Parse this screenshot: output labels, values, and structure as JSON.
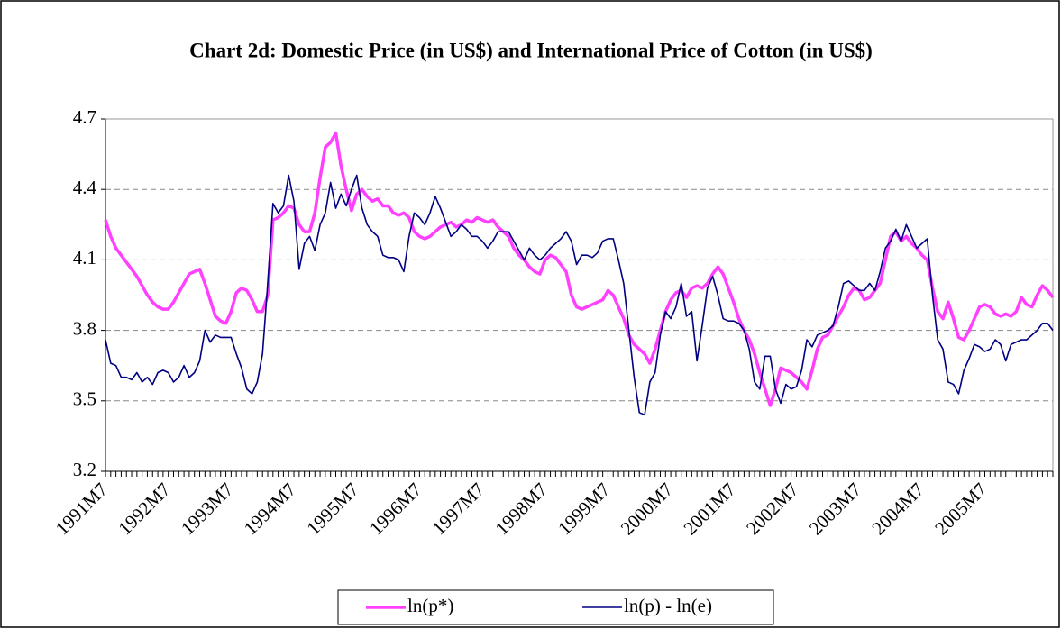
{
  "chart_data": {
    "type": "line",
    "title": "Chart 2d: Domestic Price (in US$) and International Price of Cotton (in US$)",
    "categories": [
      "1991M7",
      null,
      null,
      null,
      null,
      null,
      null,
      null,
      null,
      null,
      null,
      null,
      "1992M7",
      null,
      null,
      null,
      null,
      null,
      null,
      null,
      null,
      null,
      null,
      null,
      "1993M7",
      null,
      null,
      null,
      null,
      null,
      null,
      null,
      null,
      null,
      null,
      null,
      "1994M7",
      null,
      null,
      null,
      null,
      null,
      null,
      null,
      null,
      null,
      null,
      null,
      "1995M7",
      null,
      null,
      null,
      null,
      null,
      null,
      null,
      null,
      null,
      null,
      null,
      "1996M7",
      null,
      null,
      null,
      null,
      null,
      null,
      null,
      null,
      null,
      null,
      null,
      "1997M7",
      null,
      null,
      null,
      null,
      null,
      null,
      null,
      null,
      null,
      null,
      null,
      "1998M7",
      null,
      null,
      null,
      null,
      null,
      null,
      null,
      null,
      null,
      null,
      null,
      "1999M7",
      null,
      null,
      null,
      null,
      null,
      null,
      null,
      null,
      null,
      null,
      null,
      "2000M7",
      null,
      null,
      null,
      null,
      null,
      null,
      null,
      null,
      null,
      null,
      null,
      "2001M7",
      null,
      null,
      null,
      null,
      null,
      null,
      null,
      null,
      null,
      null,
      null,
      "2002M7",
      null,
      null,
      null,
      null,
      null,
      null,
      null,
      null,
      null,
      null,
      null,
      "2003M7",
      null,
      null,
      null,
      null,
      null,
      null,
      null,
      null,
      null,
      null,
      null,
      "2004M7",
      null,
      null,
      null,
      null,
      null,
      null,
      null,
      null,
      null,
      null,
      null,
      "2005M7",
      null,
      null,
      null,
      null,
      null,
      null,
      null,
      null,
      null,
      null,
      null,
      null,
      null
    ],
    "series": [
      {
        "name": "ln(p*)",
        "color": "#ff40ff",
        "values": [
          4.27,
          4.2,
          4.15,
          4.12,
          4.09,
          4.06,
          4.03,
          3.99,
          3.95,
          3.92,
          3.9,
          3.89,
          3.89,
          3.92,
          3.96,
          4.0,
          4.04,
          4.05,
          4.06,
          4.0,
          3.93,
          3.86,
          3.84,
          3.83,
          3.88,
          3.96,
          3.98,
          3.97,
          3.93,
          3.88,
          3.88,
          3.95,
          4.27,
          4.28,
          4.3,
          4.33,
          4.32,
          4.25,
          4.22,
          4.22,
          4.3,
          4.45,
          4.58,
          4.6,
          4.64,
          4.5,
          4.4,
          4.31,
          4.38,
          4.4,
          4.37,
          4.35,
          4.36,
          4.33,
          4.33,
          4.3,
          4.29,
          4.3,
          4.28,
          4.22,
          4.2,
          4.19,
          4.2,
          4.22,
          4.24,
          4.25,
          4.26,
          4.24,
          4.25,
          4.27,
          4.26,
          4.28,
          4.27,
          4.26,
          4.27,
          4.24,
          4.22,
          4.2,
          4.15,
          4.12,
          4.1,
          4.07,
          4.05,
          4.04,
          4.1,
          4.12,
          4.11,
          4.08,
          4.05,
          3.95,
          3.9,
          3.89,
          3.9,
          3.91,
          3.92,
          3.93,
          3.97,
          3.95,
          3.9,
          3.85,
          3.78,
          3.74,
          3.72,
          3.7,
          3.66,
          3.72,
          3.8,
          3.88,
          3.93,
          3.96,
          3.97,
          3.94,
          3.98,
          3.99,
          3.98,
          4.0,
          4.04,
          4.07,
          4.04,
          3.98,
          3.92,
          3.85,
          3.8,
          3.76,
          3.7,
          3.62,
          3.55,
          3.48,
          3.55,
          3.64,
          3.63,
          3.62,
          3.6,
          3.58,
          3.55,
          3.63,
          3.72,
          3.77,
          3.78,
          3.82,
          3.86,
          3.9,
          3.95,
          3.98,
          3.97,
          3.93,
          3.94,
          3.97,
          4.0,
          4.1,
          4.2,
          4.22,
          4.18,
          4.2,
          4.17,
          4.15,
          4.12,
          4.1,
          3.98,
          3.88,
          3.85,
          3.92,
          3.85,
          3.77,
          3.76,
          3.8,
          3.85,
          3.9,
          3.91,
          3.9,
          3.87,
          3.86,
          3.87,
          3.86,
          3.88,
          3.94,
          3.91,
          3.9,
          3.95,
          3.99,
          3.97,
          3.94
        ]
      },
      {
        "name": "ln(p) - ln(e)",
        "color": "#000080",
        "values": [
          3.76,
          3.66,
          3.65,
          3.6,
          3.6,
          3.59,
          3.62,
          3.58,
          3.6,
          3.57,
          3.62,
          3.63,
          3.62,
          3.58,
          3.6,
          3.65,
          3.6,
          3.62,
          3.67,
          3.8,
          3.75,
          3.78,
          3.77,
          3.77,
          3.77,
          3.7,
          3.64,
          3.55,
          3.53,
          3.58,
          3.7,
          4.0,
          4.34,
          4.3,
          4.33,
          4.46,
          4.35,
          4.06,
          4.17,
          4.2,
          4.14,
          4.25,
          4.3,
          4.43,
          4.32,
          4.38,
          4.33,
          4.4,
          4.46,
          4.32,
          4.25,
          4.22,
          4.2,
          4.12,
          4.11,
          4.11,
          4.1,
          4.05,
          4.2,
          4.3,
          4.28,
          4.25,
          4.3,
          4.37,
          4.32,
          4.26,
          4.2,
          4.22,
          4.25,
          4.23,
          4.2,
          4.2,
          4.18,
          4.15,
          4.18,
          4.22,
          4.22,
          4.22,
          4.18,
          4.14,
          4.1,
          4.15,
          4.12,
          4.1,
          4.12,
          4.15,
          4.17,
          4.19,
          4.22,
          4.18,
          4.08,
          4.12,
          4.12,
          4.11,
          4.13,
          4.18,
          4.19,
          4.19,
          4.1,
          4.0,
          3.8,
          3.6,
          3.45,
          3.44,
          3.58,
          3.62,
          3.78,
          3.88,
          3.85,
          3.9,
          4.0,
          3.86,
          3.88,
          3.67,
          3.82,
          3.98,
          4.03,
          3.95,
          3.85,
          3.84,
          3.84,
          3.83,
          3.8,
          3.72,
          3.58,
          3.55,
          3.69,
          3.69,
          3.55,
          3.49,
          3.57,
          3.55,
          3.56,
          3.63,
          3.76,
          3.73,
          3.78,
          3.79,
          3.8,
          3.82,
          3.9,
          4.0,
          4.01,
          3.99,
          3.97,
          3.97,
          4.0,
          3.97,
          4.05,
          4.15,
          4.18,
          4.23,
          4.18,
          4.25,
          4.2,
          4.15,
          4.17,
          4.19,
          3.95,
          3.76,
          3.72,
          3.58,
          3.57,
          3.53,
          3.63,
          3.68,
          3.74,
          3.73,
          3.71,
          3.72,
          3.76,
          3.74,
          3.67,
          3.74,
          3.75,
          3.76,
          3.76,
          3.78,
          3.8,
          3.83,
          3.83,
          3.8
        ]
      }
    ],
    "ylim": [
      3.2,
      4.7
    ],
    "yticks": [
      3.2,
      3.5,
      3.8,
      4.1,
      4.4,
      4.7
    ],
    "grid": true,
    "legend": "bottom"
  }
}
